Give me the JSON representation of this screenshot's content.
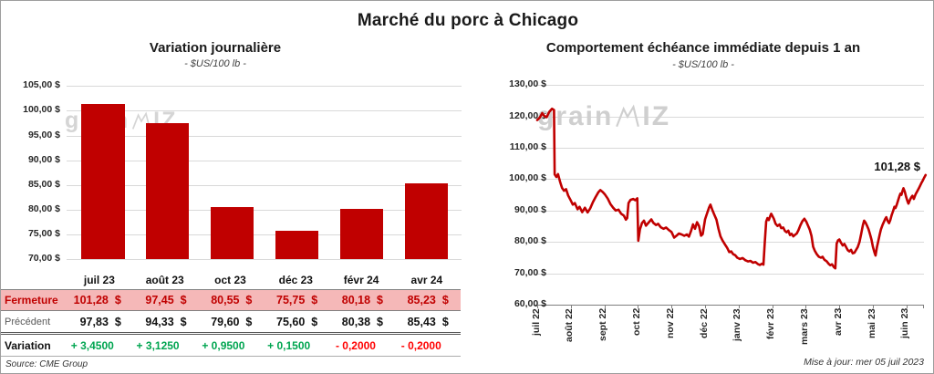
{
  "page": {
    "title": "Marché du porc à Chicago",
    "source": "Source: CME Group",
    "updated": "Mise à jour: mer 05 juil 2023",
    "watermark_pre": "grain",
    "watermark_post": "IZ"
  },
  "colors": {
    "bar_red": "#c00000",
    "line_red": "#c00000",
    "fermeture_bg": "#f5b8b8",
    "fermeture_text": "#c00000",
    "positive_green": "#00a550",
    "negative_red": "#ff0000",
    "gridline": "#d9d9d9"
  },
  "left_chart": {
    "title": "Variation journalière",
    "subtitle": "- $US/100 lb -",
    "y_ticks": [
      "105,00 $",
      "100,00 $",
      "95,00 $",
      "90,00 $",
      "85,00 $",
      "80,00 $",
      "75,00 $",
      "70,00 $"
    ]
  },
  "table": {
    "categories": [
      "juil 23",
      "août 23",
      "oct 23",
      "déc 23",
      "févr 24",
      "avr 24"
    ],
    "rows": [
      {
        "style": "fermeture",
        "label": "Fermeture",
        "values": [
          "101,28  $",
          "97,45  $",
          "80,55  $",
          "75,75  $",
          "80,18  $",
          "85,23  $"
        ]
      },
      {
        "style": "precedent",
        "label": "Précédent",
        "values": [
          "97,83  $",
          "94,33  $",
          "79,60  $",
          "75,60  $",
          "80,38  $",
          "85,43  $"
        ]
      },
      {
        "style": "variation",
        "label": "Variation",
        "values": [
          "+ 3,4500",
          "+ 3,1250",
          "+ 0,9500",
          "+ 0,1500",
          "- 0,2000",
          "- 0,2000"
        ],
        "signs": [
          "pos",
          "pos",
          "pos",
          "pos",
          "neg",
          "neg"
        ]
      }
    ]
  },
  "right_chart": {
    "title": "Comportement échéance immédiate depuis 1 an",
    "subtitle": "- $US/100 lb -",
    "annotation": "101,28 $",
    "y_ticks": [
      "130,00 $",
      "120,00 $",
      "110,00 $",
      "100,00 $",
      "90,00 $",
      "80,00 $",
      "70,00 $",
      "60,00 $"
    ],
    "x_ticks": [
      "juil 22",
      "août 22",
      "sept 22",
      "oct 22",
      "nov 22",
      "déc 22",
      "janv 23",
      "févr 23",
      "mars 23",
      "avr 23",
      "mai 23",
      "juin 23"
    ]
  },
  "chart_data": [
    {
      "type": "bar",
      "title": "Variation journalière",
      "subtitle": "- $US/100 lb -",
      "ylabel": "$US/100 lb",
      "categories": [
        "juil 23",
        "août 23",
        "oct 23",
        "déc 23",
        "févr 24",
        "avr 24"
      ],
      "values": [
        101.28,
        97.45,
        80.55,
        75.75,
        80.18,
        85.23
      ],
      "previous_values": [
        97.83,
        94.33,
        79.6,
        75.6,
        80.38,
        85.43
      ],
      "variations": [
        3.45,
        3.125,
        0.95,
        0.15,
        -0.2,
        -0.2
      ],
      "ylim": [
        70,
        105
      ],
      "y_tick_step": 5,
      "grid": true,
      "bar_color": "#c00000"
    },
    {
      "type": "line",
      "title": "Comportement échéance immédiate depuis 1 an",
      "subtitle": "- $US/100 lb -",
      "ylabel": "$US/100 lb",
      "x_unit": "months after juil 22",
      "x_tick_labels": [
        "juil 22",
        "août 22",
        "sept 22",
        "oct 22",
        "nov 22",
        "déc 22",
        "janv 23",
        "févr 23",
        "mars 23",
        "avr 23",
        "mai 23",
        "juin 23"
      ],
      "ylim": [
        60,
        130
      ],
      "y_tick_step": 10,
      "grid": true,
      "last_value": 101.28,
      "last_value_label": "101,28 $",
      "series": [
        {
          "name": "échéance immédiate",
          "color": "#c00000",
          "points": [
            [
              0,
              118.8
            ],
            [
              0.08,
              119.6
            ],
            [
              0.15,
              121
            ],
            [
              0.21,
              120.1
            ],
            [
              0.28,
              119.7
            ],
            [
              0.36,
              121.4
            ],
            [
              0.44,
              122.4
            ],
            [
              0.5,
              122
            ],
            [
              0.52,
              101.5
            ],
            [
              0.57,
              100.7
            ],
            [
              0.62,
              101.6
            ],
            [
              0.68,
              99.2
            ],
            [
              0.74,
              97.2
            ],
            [
              0.8,
              96.3
            ],
            [
              0.86,
              96.8
            ],
            [
              0.92,
              94.8
            ],
            [
              1,
              93.2
            ],
            [
              1.06,
              91.9
            ],
            [
              1.12,
              92.4
            ],
            [
              1.2,
              90.4
            ],
            [
              1.26,
              91.2
            ],
            [
              1.34,
              89.5
            ],
            [
              1.42,
              90.9
            ],
            [
              1.5,
              89.4
            ],
            [
              1.58,
              90.7
            ],
            [
              1.66,
              92.7
            ],
            [
              1.74,
              94.3
            ],
            [
              1.82,
              95.8
            ],
            [
              1.88,
              96.5
            ],
            [
              1.95,
              95.9
            ],
            [
              2.02,
              95.1
            ],
            [
              2.1,
              93.8
            ],
            [
              2.18,
              92.1
            ],
            [
              2.26,
              90.9
            ],
            [
              2.34,
              90
            ],
            [
              2.42,
              90.3
            ],
            [
              2.5,
              89
            ],
            [
              2.58,
              88.4
            ],
            [
              2.64,
              87.1
            ],
            [
              2.68,
              87.6
            ],
            [
              2.72,
              92.4
            ],
            [
              2.78,
              93.4
            ],
            [
              2.86,
              93.7
            ],
            [
              2.92,
              93.3
            ],
            [
              2.98,
              93.9
            ],
            [
              3.01,
              80.4
            ],
            [
              3.06,
              84
            ],
            [
              3.12,
              86
            ],
            [
              3.18,
              86.8
            ],
            [
              3.24,
              85.2
            ],
            [
              3.32,
              86.2
            ],
            [
              3.4,
              87.2
            ],
            [
              3.46,
              86.1
            ],
            [
              3.54,
              85.4
            ],
            [
              3.6,
              85.8
            ],
            [
              3.68,
              84.7
            ],
            [
              3.76,
              84.2
            ],
            [
              3.84,
              84.6
            ],
            [
              3.92,
              83.8
            ],
            [
              4,
              83.2
            ],
            [
              4.08,
              81.4
            ],
            [
              4.15,
              82
            ],
            [
              4.22,
              82.7
            ],
            [
              4.3,
              82.4
            ],
            [
              4.38,
              82
            ],
            [
              4.46,
              82.4
            ],
            [
              4.52,
              81.7
            ],
            [
              4.58,
              83.4
            ],
            [
              4.64,
              85.6
            ],
            [
              4.7,
              84.2
            ],
            [
              4.76,
              86.3
            ],
            [
              4.82,
              85.1
            ],
            [
              4.88,
              82
            ],
            [
              4.93,
              82.5
            ],
            [
              5,
              87.2
            ],
            [
              5.06,
              89.1
            ],
            [
              5.12,
              91
            ],
            [
              5.16,
              91.9
            ],
            [
              5.22,
              90.1
            ],
            [
              5.28,
              88.6
            ],
            [
              5.34,
              87.1
            ],
            [
              5.4,
              84.2
            ],
            [
              5.46,
              81.8
            ],
            [
              5.52,
              80.5
            ],
            [
              5.6,
              79.1
            ],
            [
              5.66,
              78.1
            ],
            [
              5.72,
              76.8
            ],
            [
              5.78,
              77
            ],
            [
              5.84,
              76.1
            ],
            [
              5.9,
              75.8
            ],
            [
              5.96,
              75
            ],
            [
              6.04,
              74.6
            ],
            [
              6.12,
              74.9
            ],
            [
              6.2,
              74.2
            ],
            [
              6.28,
              73.8
            ],
            [
              6.35,
              74
            ],
            [
              6.43,
              73.4
            ],
            [
              6.5,
              73.6
            ],
            [
              6.57,
              73
            ],
            [
              6.63,
              72.7
            ],
            [
              6.7,
              73.1
            ],
            [
              6.74,
              72.8
            ],
            [
              6.78,
              80
            ],
            [
              6.82,
              86.5
            ],
            [
              6.86,
              87.6
            ],
            [
              6.9,
              87
            ],
            [
              6.94,
              88.2
            ],
            [
              6.97,
              89
            ],
            [
              7,
              88.4
            ],
            [
              7.05,
              87.4
            ],
            [
              7.1,
              85.8
            ],
            [
              7.16,
              85.1
            ],
            [
              7.22,
              85.6
            ],
            [
              7.27,
              84.4
            ],
            [
              7.33,
              84.6
            ],
            [
              7.38,
              83.5
            ],
            [
              7.43,
              83.1
            ],
            [
              7.48,
              83.6
            ],
            [
              7.53,
              82.2
            ],
            [
              7.58,
              82.6
            ],
            [
              7.63,
              81.8
            ],
            [
              7.68,
              82.3
            ],
            [
              7.73,
              82.7
            ],
            [
              7.78,
              83.7
            ],
            [
              7.84,
              85.3
            ],
            [
              7.9,
              86.6
            ],
            [
              7.96,
              87.4
            ],
            [
              8.02,
              86.4
            ],
            [
              8.06,
              85.4
            ],
            [
              8.12,
              83.9
            ],
            [
              8.17,
              81.9
            ],
            [
              8.22,
              78.5
            ],
            [
              8.27,
              77.2
            ],
            [
              8.33,
              76.1
            ],
            [
              8.39,
              75.3
            ],
            [
              8.45,
              75
            ],
            [
              8.5,
              75.3
            ],
            [
              8.56,
              74.3
            ],
            [
              8.62,
              73.9
            ],
            [
              8.68,
              73.1
            ],
            [
              8.73,
              72.6
            ],
            [
              8.78,
              72.9
            ],
            [
              8.84,
              72
            ],
            [
              8.88,
              71.6
            ],
            [
              8.92,
              79.5
            ],
            [
              8.96,
              80.5
            ],
            [
              9,
              80.8
            ],
            [
              9.05,
              79.8
            ],
            [
              9.1,
              78.9
            ],
            [
              9.15,
              79.4
            ],
            [
              9.2,
              78.4
            ],
            [
              9.25,
              77.4
            ],
            [
              9.3,
              77
            ],
            [
              9.35,
              77.5
            ],
            [
              9.4,
              76.4
            ],
            [
              9.45,
              76.6
            ],
            [
              9.5,
              77.5
            ],
            [
              9.55,
              78.4
            ],
            [
              9.6,
              80
            ],
            [
              9.65,
              82.5
            ],
            [
              9.7,
              85.3
            ],
            [
              9.74,
              86.8
            ],
            [
              9.78,
              86.2
            ],
            [
              9.83,
              85.1
            ],
            [
              9.87,
              84.1
            ],
            [
              9.91,
              82.6
            ],
            [
              9.96,
              80.7
            ],
            [
              10,
              78.5
            ],
            [
              10.05,
              76.6
            ],
            [
              10.08,
              75.7
            ],
            [
              10.12,
              78.3
            ],
            [
              10.16,
              80.3
            ],
            [
              10.2,
              82.3
            ],
            [
              10.24,
              84
            ],
            [
              10.29,
              85.5
            ],
            [
              10.33,
              86.4
            ],
            [
              10.37,
              87.4
            ],
            [
              10.4,
              87.9
            ],
            [
              10.44,
              86.7
            ],
            [
              10.48,
              86
            ],
            [
              10.52,
              87
            ],
            [
              10.56,
              88.6
            ],
            [
              10.6,
              89.8
            ],
            [
              10.64,
              91.2
            ],
            [
              10.67,
              90.8
            ],
            [
              10.71,
              91.8
            ],
            [
              10.75,
              93.2
            ],
            [
              10.79,
              94.6
            ],
            [
              10.82,
              95.4
            ],
            [
              10.85,
              95
            ],
            [
              10.88,
              96.2
            ],
            [
              10.91,
              97.1
            ],
            [
              10.95,
              96
            ],
            [
              10.99,
              94.4
            ],
            [
              11.03,
              93
            ],
            [
              11.06,
              92.2
            ],
            [
              11.1,
              93.3
            ],
            [
              11.14,
              94.2
            ],
            [
              11.18,
              94.7
            ],
            [
              11.22,
              93.7
            ],
            [
              11.27,
              95.1
            ],
            [
              11.32,
              96.1
            ],
            [
              11.37,
              97.1
            ],
            [
              11.41,
              98
            ],
            [
              11.45,
              98.9
            ],
            [
              11.49,
              99.6
            ],
            [
              11.53,
              100.5
            ],
            [
              11.57,
              101.3
            ]
          ]
        }
      ]
    }
  ]
}
